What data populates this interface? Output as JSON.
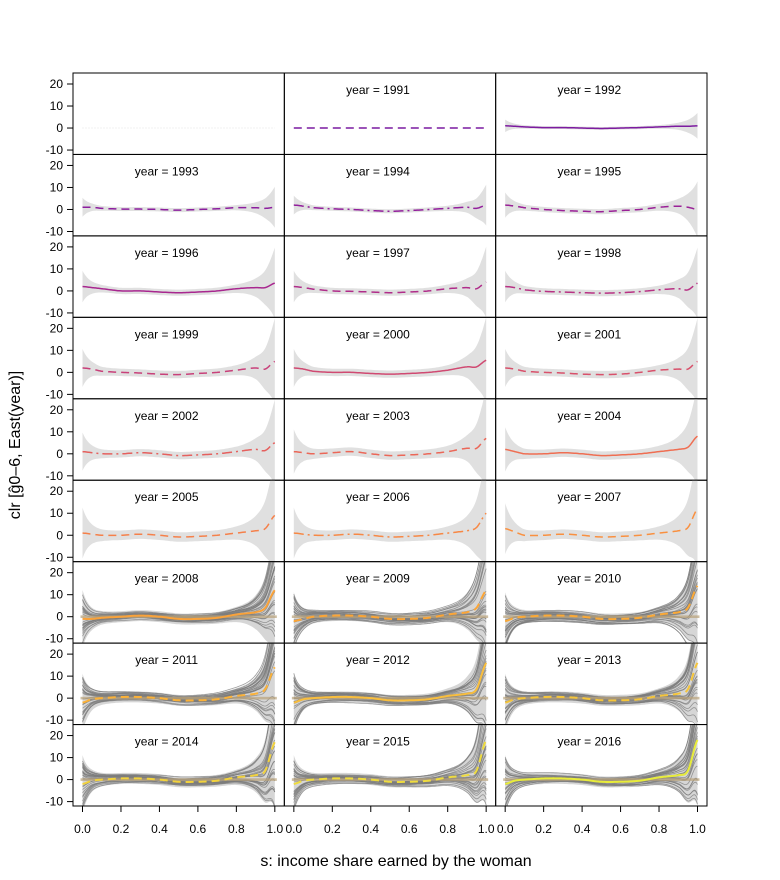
{
  "chart_data": {
    "type": "line",
    "title": "",
    "xlabel": "s: income share earned by the woman",
    "ylabel": "clr [ĝ0–6, East(year)]",
    "xlim": [
      0,
      1
    ],
    "ylim": [
      -12,
      25
    ],
    "xticks": [
      "0.0",
      "0.2",
      "0.4",
      "0.6",
      "0.8",
      "1.0"
    ],
    "yticks": [
      20,
      10,
      0,
      -10
    ],
    "grid": false,
    "layout": "9 rows x 3 columns panel grid",
    "bands": "gray confidence band (light gray for 1991-2007, dense gray bootstrap curves for 2008-2016)",
    "panels": [
      {
        "year_label": "",
        "color": "#5a0c7a",
        "dash": "none",
        "x": [
          0,
          0.5,
          1
        ],
        "y": [
          0,
          0,
          0
        ],
        "band": 0
      },
      {
        "year_label": "year = 1991",
        "color": "#7a1aa0",
        "dash": "8,5",
        "x": [
          0,
          0.2,
          0.4,
          0.6,
          0.8,
          1
        ],
        "y": [
          0,
          0,
          0,
          0,
          0,
          0
        ],
        "band": 0
      },
      {
        "year_label": "year = 1992",
        "color": "#7d1ba0",
        "dash": "none",
        "x": [
          0,
          0.05,
          0.1,
          0.2,
          0.3,
          0.4,
          0.5,
          0.6,
          0.7,
          0.8,
          0.9,
          0.95,
          1
        ],
        "y": [
          1,
          0.8,
          0.5,
          0.2,
          0.2,
          0,
          -0.2,
          0,
          0.2,
          0.5,
          0.8,
          0.8,
          1
        ],
        "band": 1
      },
      {
        "year_label": "year = 1993",
        "color": "#8c1e9e",
        "dash": "8,5",
        "x": [
          0,
          0.05,
          0.1,
          0.2,
          0.3,
          0.4,
          0.5,
          0.6,
          0.7,
          0.8,
          0.9,
          0.95,
          1
        ],
        "y": [
          1,
          1,
          0.5,
          0.2,
          0.2,
          0,
          -0.3,
          0,
          0.3,
          0.8,
          0.8,
          0.5,
          1
        ],
        "band": 2
      },
      {
        "year_label": "year = 1994",
        "color": "#921f9c",
        "dash": "10,4,2,4",
        "x": [
          0,
          0.05,
          0.1,
          0.2,
          0.3,
          0.4,
          0.5,
          0.6,
          0.7,
          0.8,
          0.9,
          0.95,
          1
        ],
        "y": [
          2,
          1.5,
          0.8,
          0.3,
          0,
          -0.5,
          -0.8,
          -0.5,
          0,
          0.5,
          1,
          0.5,
          2
        ],
        "band": 2
      },
      {
        "year_label": "year = 1995",
        "color": "#9a2197",
        "dash": "8,5",
        "x": [
          0,
          0.05,
          0.1,
          0.2,
          0.3,
          0.4,
          0.5,
          0.6,
          0.7,
          0.8,
          0.9,
          0.95,
          1
        ],
        "y": [
          2,
          1.5,
          0.8,
          0,
          -0.5,
          -0.8,
          -1,
          -0.5,
          0,
          1,
          1.5,
          1,
          0
        ],
        "band": 3
      },
      {
        "year_label": "year = 1996",
        "color": "#a8278f",
        "dash": "none",
        "x": [
          0,
          0.05,
          0.1,
          0.2,
          0.3,
          0.4,
          0.5,
          0.6,
          0.7,
          0.8,
          0.9,
          0.95,
          1
        ],
        "y": [
          2,
          1.5,
          1,
          0,
          0,
          -0.5,
          -0.8,
          -0.5,
          0,
          1,
          1.5,
          1.5,
          3.5
        ],
        "band": 4
      },
      {
        "year_label": "year = 1997",
        "color": "#b02d8a",
        "dash": "8,5",
        "x": [
          0,
          0.05,
          0.1,
          0.2,
          0.3,
          0.4,
          0.5,
          0.6,
          0.7,
          0.8,
          0.9,
          0.95,
          1
        ],
        "y": [
          2,
          1.5,
          0.8,
          0,
          -0.2,
          -0.5,
          -0.8,
          -0.5,
          0,
          1,
          1.5,
          1,
          4
        ],
        "band": 4
      },
      {
        "year_label": "year = 1998",
        "color": "#b83284",
        "dash": "10,4,2,4",
        "x": [
          0,
          0.05,
          0.1,
          0.2,
          0.3,
          0.4,
          0.5,
          0.6,
          0.7,
          0.8,
          0.9,
          0.95,
          1
        ],
        "y": [
          2,
          1.5,
          0.5,
          -0.2,
          -0.5,
          -0.8,
          -1,
          -0.8,
          -0.3,
          0.5,
          1,
          0.5,
          3.5
        ],
        "band": 4
      },
      {
        "year_label": "year = 1999",
        "color": "#c8417a",
        "dash": "8,5",
        "x": [
          0,
          0.05,
          0.1,
          0.2,
          0.3,
          0.4,
          0.5,
          0.6,
          0.7,
          0.8,
          0.9,
          0.95,
          1
        ],
        "y": [
          2,
          1.5,
          0.5,
          0,
          -0.3,
          -0.8,
          -1,
          -0.5,
          0,
          1,
          2,
          1.5,
          5
        ],
        "band": 5
      },
      {
        "year_label": "year = 2000",
        "color": "#d04a72",
        "dash": "none",
        "x": [
          0,
          0.05,
          0.1,
          0.2,
          0.3,
          0.4,
          0.5,
          0.6,
          0.7,
          0.8,
          0.9,
          0.95,
          1
        ],
        "y": [
          2,
          1.5,
          0.5,
          0,
          0,
          -0.5,
          -0.8,
          -0.5,
          0,
          1,
          2.5,
          2.5,
          5.5
        ],
        "band": 5
      },
      {
        "year_label": "year = 2001",
        "color": "#d8516b",
        "dash": "8,5",
        "x": [
          0,
          0.05,
          0.1,
          0.2,
          0.3,
          0.4,
          0.5,
          0.6,
          0.7,
          0.8,
          0.9,
          0.95,
          1
        ],
        "y": [
          2,
          1.5,
          0.5,
          0,
          -0.3,
          -0.8,
          -1,
          -0.8,
          0,
          1,
          1.5,
          1.5,
          5
        ],
        "band": 5
      },
      {
        "year_label": "year = 2002",
        "color": "#e5605e",
        "dash": "10,4,2,4",
        "x": [
          0,
          0.05,
          0.1,
          0.2,
          0.3,
          0.4,
          0.5,
          0.6,
          0.7,
          0.8,
          0.9,
          0.95,
          1
        ],
        "y": [
          1,
          0.5,
          0,
          0,
          0.5,
          0,
          -0.8,
          -0.5,
          0,
          1,
          2,
          1.5,
          5
        ],
        "band": 5
      },
      {
        "year_label": "year = 2003",
        "color": "#eb6758",
        "dash": "8,5",
        "x": [
          0,
          0.05,
          0.1,
          0.2,
          0.3,
          0.4,
          0.5,
          0.6,
          0.7,
          0.8,
          0.9,
          0.95,
          1
        ],
        "y": [
          1,
          0.5,
          0,
          0.5,
          1,
          0,
          -0.8,
          -0.5,
          0,
          1,
          2.5,
          2.5,
          7
        ],
        "band": 6
      },
      {
        "year_label": "year = 2004",
        "color": "#ef6e52",
        "dash": "none",
        "x": [
          0,
          0.05,
          0.1,
          0.2,
          0.3,
          0.4,
          0.5,
          0.6,
          0.7,
          0.8,
          0.9,
          0.95,
          1
        ],
        "y": [
          2,
          1,
          0,
          0,
          0.5,
          0,
          -0.8,
          -0.5,
          0,
          1,
          2,
          3,
          8
        ],
        "band": 6
      },
      {
        "year_label": "year = 2005",
        "color": "#f5804a",
        "dash": "8,5",
        "x": [
          0,
          0.05,
          0.1,
          0.2,
          0.3,
          0.4,
          0.5,
          0.6,
          0.7,
          0.8,
          0.9,
          0.95,
          1
        ],
        "y": [
          1,
          0.5,
          0,
          0,
          0.5,
          0,
          -0.8,
          -0.5,
          0,
          1,
          2,
          3,
          9
        ],
        "band": 7
      },
      {
        "year_label": "year = 2006",
        "color": "#f78845",
        "dash": "10,4,2,4",
        "x": [
          0,
          0.05,
          0.1,
          0.2,
          0.3,
          0.4,
          0.5,
          0.6,
          0.7,
          0.8,
          0.9,
          0.95,
          1
        ],
        "y": [
          1,
          0.5,
          0,
          0,
          0.5,
          0,
          -0.8,
          -0.5,
          0,
          1,
          2,
          3.5,
          10
        ],
        "band": 7
      },
      {
        "year_label": "year = 2007",
        "color": "#f99040",
        "dash": "8,5",
        "x": [
          0,
          0.05,
          0.1,
          0.2,
          0.3,
          0.4,
          0.5,
          0.6,
          0.7,
          0.8,
          0.9,
          0.95,
          1
        ],
        "y": [
          3,
          1.5,
          0,
          0,
          0.5,
          0,
          -0.8,
          -0.5,
          0,
          1,
          2,
          3.5,
          12
        ],
        "band": 7
      },
      {
        "year_label": "year = 2008",
        "color": "#f9a23a",
        "dash": "none",
        "x": [
          0,
          0.05,
          0.1,
          0.2,
          0.3,
          0.4,
          0.5,
          0.6,
          0.7,
          0.8,
          0.9,
          0.95,
          1
        ],
        "y": [
          -1,
          -1,
          -0.5,
          0,
          0.5,
          0,
          -1,
          -1,
          -0.5,
          1,
          2,
          4,
          12
        ],
        "band": 8
      },
      {
        "year_label": "year = 2009",
        "color": "#fba536",
        "dash": "8,5",
        "x": [
          0,
          0.05,
          0.1,
          0.2,
          0.3,
          0.4,
          0.5,
          0.6,
          0.7,
          0.8,
          0.9,
          0.95,
          1
        ],
        "y": [
          -2,
          -1,
          0,
          0.5,
          0.5,
          0,
          -1,
          -1,
          -0.5,
          1,
          2,
          4,
          12
        ],
        "band": 8
      },
      {
        "year_label": "year = 2010",
        "color": "#fba936",
        "dash": "8,5",
        "x": [
          0,
          0.05,
          0.1,
          0.2,
          0.3,
          0.4,
          0.5,
          0.6,
          0.7,
          0.8,
          0.9,
          0.95,
          1
        ],
        "y": [
          -2,
          -0.5,
          0,
          0.5,
          0.5,
          0,
          -1,
          -1,
          -0.5,
          1,
          2,
          4,
          14
        ],
        "band": 8
      },
      {
        "year_label": "year = 2011",
        "color": "#fbb137",
        "dash": "8,5",
        "x": [
          0,
          0.05,
          0.1,
          0.2,
          0.3,
          0.4,
          0.5,
          0.6,
          0.7,
          0.8,
          0.9,
          0.95,
          1
        ],
        "y": [
          -2,
          -0.5,
          0,
          0.5,
          0.5,
          0,
          -1,
          -1,
          -0.5,
          1,
          2,
          4,
          14
        ],
        "band": 8
      },
      {
        "year_label": "year = 2012",
        "color": "#f9be3d",
        "dash": "none",
        "x": [
          0,
          0.05,
          0.1,
          0.2,
          0.3,
          0.4,
          0.5,
          0.6,
          0.7,
          0.8,
          0.9,
          0.95,
          1
        ],
        "y": [
          -2,
          -0.5,
          0,
          0.5,
          0.5,
          0,
          -1,
          -1,
          -0.5,
          1,
          2,
          4,
          16
        ],
        "band": 8
      },
      {
        "year_label": "year = 2013",
        "color": "#f5c53a",
        "dash": "8,5",
        "x": [
          0,
          0.05,
          0.1,
          0.2,
          0.3,
          0.4,
          0.5,
          0.6,
          0.7,
          0.8,
          0.9,
          0.95,
          1
        ],
        "y": [
          -2,
          -0.5,
          0,
          0.5,
          0.5,
          0,
          -1,
          -1,
          -0.5,
          1,
          2,
          4,
          16
        ],
        "band": 8
      },
      {
        "year_label": "year = 2014",
        "color": "#f2d23c",
        "dash": "8,5",
        "x": [
          0,
          0.05,
          0.1,
          0.2,
          0.3,
          0.4,
          0.5,
          0.6,
          0.7,
          0.8,
          0.9,
          0.95,
          1
        ],
        "y": [
          -2,
          -0.5,
          0,
          0.5,
          0.5,
          0,
          -1,
          -1,
          -0.5,
          1,
          2,
          4,
          17
        ],
        "band": 8
      },
      {
        "year_label": "year = 2015",
        "color": "#efdc3e",
        "dash": "8,5",
        "x": [
          0,
          0.05,
          0.1,
          0.2,
          0.3,
          0.4,
          0.5,
          0.6,
          0.7,
          0.8,
          0.9,
          0.95,
          1
        ],
        "y": [
          -2,
          -0.5,
          0,
          0.5,
          0.5,
          0,
          -1,
          -1,
          -0.5,
          1,
          2,
          4,
          18
        ],
        "band": 8
      },
      {
        "year_label": "year = 2016",
        "color": "#e8ec3a",
        "dash": "none",
        "x": [
          0,
          0.05,
          0.1,
          0.2,
          0.3,
          0.4,
          0.5,
          0.6,
          0.7,
          0.8,
          0.9,
          0.95,
          1
        ],
        "y": [
          -2,
          -0.5,
          0,
          0.5,
          0.5,
          0,
          -1,
          -1,
          -0.5,
          1,
          2,
          4,
          18
        ],
        "band": 8
      }
    ]
  },
  "colors": {
    "band_light": "#e0e0e0",
    "band_dense": "#8a8a8a",
    "band_dense_line": "#7c7c7c",
    "frame": "#000000"
  }
}
